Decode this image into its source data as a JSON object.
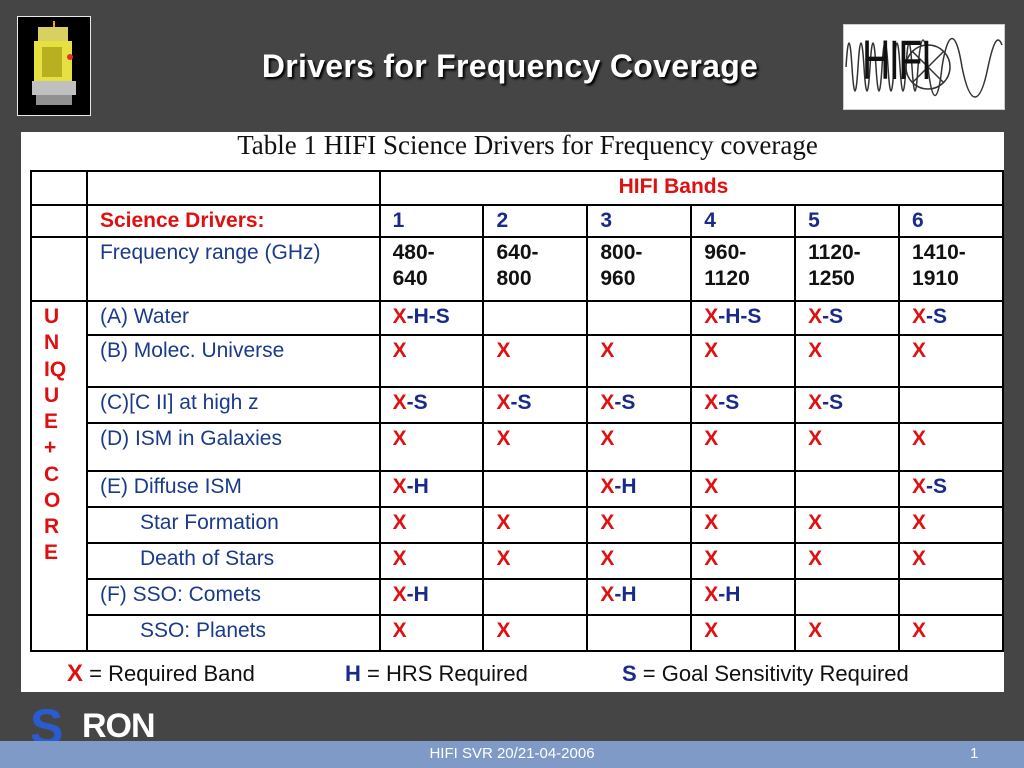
{
  "slide": {
    "title": "Drivers for Frequency Coverage"
  },
  "logos": {
    "right_text": "HIFI",
    "sron_text": "RON",
    "sron_initial": "S"
  },
  "table": {
    "caption": "Table 1 HIFI Science Drivers for Frequency coverage",
    "bands_header": "HIFI   Bands",
    "drivers_header": "Science Drivers:",
    "band_numbers": [
      "1",
      "2",
      "3",
      "4",
      "5",
      "6"
    ],
    "frequency_label": "Frequency range (GHz)",
    "frequency_ranges": [
      [
        "480-",
        "640"
      ],
      [
        "640-",
        "800"
      ],
      [
        "800-",
        "960"
      ],
      [
        "960-",
        "1120"
      ],
      [
        "1120-",
        "1250"
      ],
      [
        "1410-",
        "1910"
      ]
    ],
    "side_label": [
      "U",
      "N",
      "IQ",
      "U",
      "E",
      "+",
      "C",
      "O",
      "R",
      "E"
    ],
    "rows": [
      {
        "label": "(A) Water",
        "indent": false,
        "cells": [
          "X-H-S",
          "",
          "",
          "X-H-S",
          "X-S",
          "X-S"
        ]
      },
      {
        "label": "(B) Molec. Universe",
        "indent": false,
        "cells": [
          "X",
          "X",
          "X",
          "X",
          "X",
          "X"
        ]
      },
      {
        "label": "(C)[C II] at high z",
        "indent": false,
        "cells": [
          "X-S",
          "X-S",
          "X-S",
          "X-S",
          "X-S",
          ""
        ]
      },
      {
        "label": "(D) ISM in Galaxies",
        "indent": false,
        "cells": [
          "X",
          "X",
          "X",
          "X",
          "X",
          "X"
        ]
      },
      {
        "label": "(E) Diffuse ISM",
        "indent": false,
        "cells": [
          "X-H",
          "",
          "X-H",
          "X",
          "",
          "X-S"
        ]
      },
      {
        "label": "Star Formation",
        "indent": true,
        "cells": [
          "X",
          "X",
          "X",
          "X",
          "X",
          "X"
        ]
      },
      {
        "label": "Death of Stars",
        "indent": true,
        "cells": [
          "X",
          "X",
          "X",
          "X",
          "X",
          "X"
        ]
      },
      {
        "label": "(F) SSO: Comets",
        "indent": false,
        "cells": [
          "X-H",
          "",
          "X-H",
          "X-H",
          "",
          ""
        ]
      },
      {
        "label": "SSO: Planets",
        "indent": true,
        "cells": [
          "X",
          "X",
          "",
          "X",
          "X",
          "X"
        ]
      }
    ]
  },
  "legend": {
    "x_key": "X",
    "x_text": " = Required Band",
    "h_key": "H",
    "h_text": " = HRS Required",
    "s_key": "S",
    "s_text": " = Goal Sensitivity Required"
  },
  "footer": {
    "center": "HIFI SVR 20/21-04-2006",
    "page": "1"
  },
  "colors": {
    "background": "#454545",
    "red": "#e01010",
    "navy": "#1a2a8a",
    "footer_bar": "#7f9ac6"
  }
}
